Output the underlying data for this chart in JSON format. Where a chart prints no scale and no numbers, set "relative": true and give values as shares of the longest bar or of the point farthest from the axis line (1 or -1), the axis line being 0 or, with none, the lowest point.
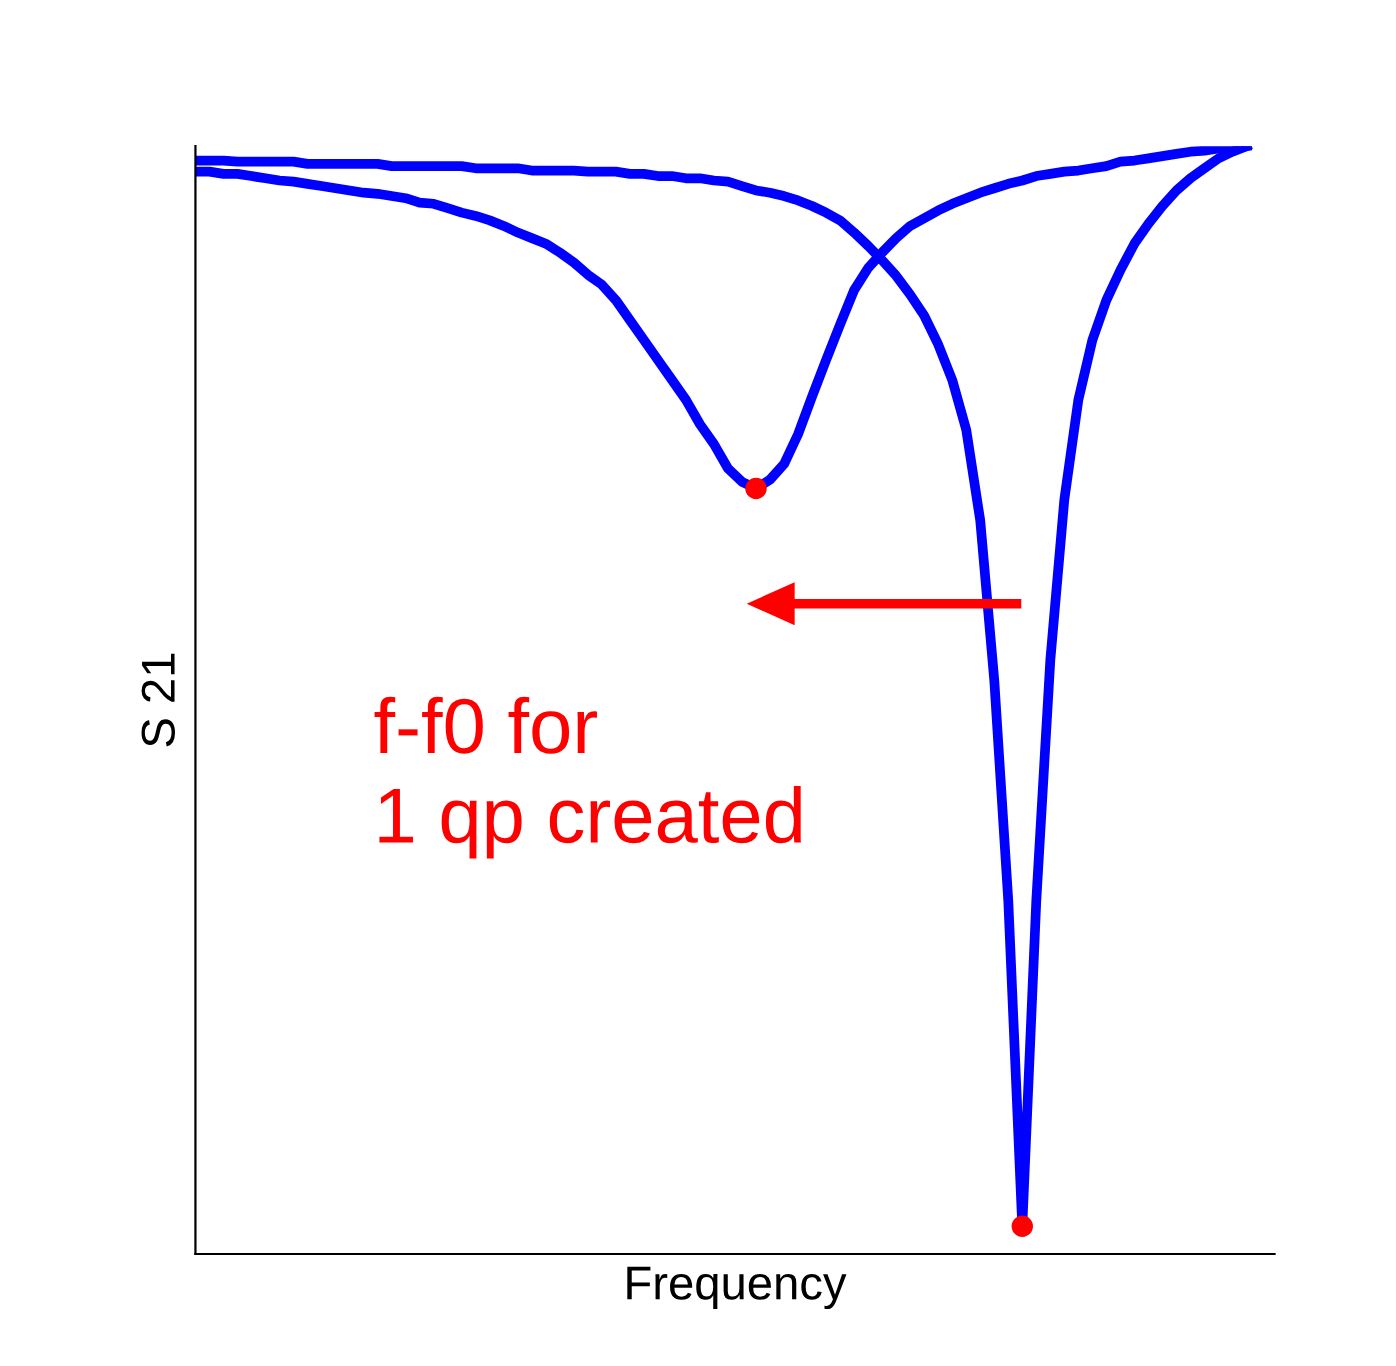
{
  "chart_data": {
    "type": "line",
    "relative": true,
    "xlabel": "Frequency",
    "ylabel": "S 21",
    "grid": false,
    "legend": false,
    "tick_labels": false,
    "categories": [
      null,
      null,
      null,
      null,
      null,
      null,
      null,
      null,
      null,
      null,
      null,
      null,
      null,
      null,
      null,
      null,
      null,
      null,
      null,
      null,
      null,
      null,
      null,
      null,
      null,
      null,
      null,
      null,
      null,
      null,
      null,
      null,
      null,
      null,
      null,
      null,
      null,
      null,
      null,
      null,
      null,
      null,
      null,
      null,
      null,
      null,
      null,
      null,
      null,
      null,
      null,
      null,
      null,
      null,
      null,
      null,
      null,
      null,
      null,
      null,
      null,
      null,
      null,
      null,
      null,
      null,
      null,
      null,
      null,
      null,
      null,
      null,
      null,
      null,
      null,
      null
    ],
    "series": [
      {
        "color": "#0000ff",
        "values": [
          0.977,
          0.977,
          0.975,
          0.975,
          0.973,
          0.971,
          0.969,
          0.968,
          0.966,
          0.964,
          0.962,
          0.96,
          0.958,
          0.957,
          0.955,
          0.953,
          0.949,
          0.948,
          0.944,
          0.94,
          0.937,
          0.933,
          0.928,
          0.922,
          0.917,
          0.912,
          0.904,
          0.895,
          0.884,
          0.875,
          0.861,
          0.843,
          0.825,
          0.807,
          0.789,
          0.771,
          0.749,
          0.731,
          0.709,
          0.697,
          0.691,
          0.699,
          0.713,
          0.74,
          0.774,
          0.807,
          0.839,
          0.87,
          0.89,
          0.904,
          0.917,
          0.928,
          0.935,
          0.942,
          0.948,
          0.953,
          0.958,
          0.962,
          0.966,
          0.969,
          0.973,
          0.975,
          0.977,
          0.978,
          0.98,
          0.982,
          0.986,
          0.987,
          0.989,
          0.991,
          0.993,
          0.995,
          0.996,
          0.998,
          0.998,
          1.0
        ]
      },
      {
        "color": "#0000ff",
        "values": [
          0.987,
          0.987,
          0.987,
          0.986,
          0.986,
          0.986,
          0.986,
          0.986,
          0.984,
          0.984,
          0.984,
          0.984,
          0.984,
          0.984,
          0.982,
          0.982,
          0.982,
          0.982,
          0.982,
          0.982,
          0.98,
          0.98,
          0.98,
          0.98,
          0.978,
          0.978,
          0.978,
          0.978,
          0.977,
          0.977,
          0.977,
          0.975,
          0.975,
          0.973,
          0.973,
          0.971,
          0.971,
          0.969,
          0.968,
          0.964,
          0.96,
          0.958,
          0.955,
          0.951,
          0.946,
          0.94,
          0.933,
          0.922,
          0.91,
          0.897,
          0.883,
          0.866,
          0.847,
          0.821,
          0.789,
          0.744,
          0.662,
          0.518,
          0.319,
          0.025,
          0.319,
          0.536,
          0.681,
          0.771,
          0.825,
          0.861,
          0.888,
          0.912,
          0.93,
          0.946,
          0.96,
          0.971,
          0.98,
          0.989,
          0.995,
          1.0
        ]
      }
    ],
    "annotations": [
      "f-f0 for\n1 qp created"
    ]
  }
}
